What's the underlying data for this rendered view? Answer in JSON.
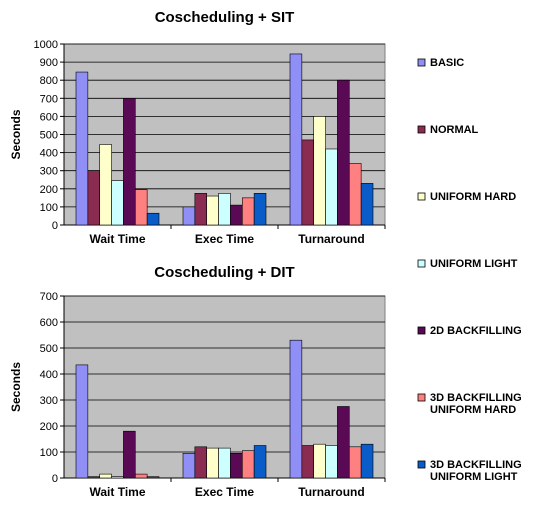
{
  "legend": {
    "position": "right",
    "entries": [
      {
        "lines": [
          "BASIC"
        ],
        "color": "#8f8ff5"
      },
      {
        "lines": [
          "NORMAL"
        ],
        "color": "#8a2b52"
      },
      {
        "lines": [
          "UNIFORM HARD"
        ],
        "color": "#ffffcc"
      },
      {
        "lines": [
          "UNIFORM LIGHT"
        ],
        "color": "#ccffff"
      },
      {
        "lines": [
          "2D BACKFILLING"
        ],
        "color": "#5a0a55"
      },
      {
        "lines": [
          "3D BACKFILLING",
          "UNIFORM HARD"
        ],
        "color": "#ff8080"
      },
      {
        "lines": [
          "3D BACKFILLING",
          "UNIFORM LIGHT"
        ],
        "color": "#0a5cc8"
      }
    ]
  },
  "chart_data": [
    {
      "type": "bar",
      "title": "Coscheduling + SIT",
      "xlabel": "",
      "ylabel": "Seconds",
      "ylim": [
        0,
        1000
      ],
      "yticks": [
        0,
        100,
        200,
        300,
        400,
        500,
        600,
        700,
        800,
        900,
        1000
      ],
      "grid": true,
      "plot_background": "#c0c0c0",
      "categories": [
        "Wait Time",
        "Exec Time",
        "Turnaround"
      ],
      "series": [
        {
          "name": "BASIC",
          "values": [
            845,
            100,
            945
          ]
        },
        {
          "name": "NORMAL",
          "values": [
            300,
            175,
            470
          ]
        },
        {
          "name": "UNIFORM HARD",
          "values": [
            445,
            160,
            600
          ]
        },
        {
          "name": "UNIFORM LIGHT",
          "values": [
            245,
            175,
            420
          ]
        },
        {
          "name": "2D BACKFILLING",
          "values": [
            700,
            110,
            800
          ]
        },
        {
          "name": "3D BACKFILLING UNIFORM HARD",
          "values": [
            195,
            150,
            340
          ]
        },
        {
          "name": "3D BACKFILLING UNIFORM LIGHT",
          "values": [
            65,
            175,
            230
          ]
        }
      ]
    },
    {
      "type": "bar",
      "title": "Coscheduling + DIT",
      "xlabel": "",
      "ylabel": "Seconds",
      "ylim": [
        0,
        700
      ],
      "yticks": [
        0,
        100,
        200,
        300,
        400,
        500,
        600,
        700
      ],
      "grid": true,
      "plot_background": "#c0c0c0",
      "categories": [
        "Wait Time",
        "Exec Time",
        "Turnaround"
      ],
      "series": [
        {
          "name": "BASIC",
          "values": [
            435,
            95,
            530
          ]
        },
        {
          "name": "NORMAL",
          "values": [
            5,
            120,
            125
          ]
        },
        {
          "name": "UNIFORM HARD",
          "values": [
            15,
            115,
            130
          ]
        },
        {
          "name": "UNIFORM LIGHT",
          "values": [
            5,
            115,
            125
          ]
        },
        {
          "name": "2D BACKFILLING",
          "values": [
            180,
            95,
            275
          ]
        },
        {
          "name": "3D BACKFILLING UNIFORM HARD",
          "values": [
            15,
            105,
            120
          ]
        },
        {
          "name": "3D BACKFILLING UNIFORM LIGHT",
          "values": [
            5,
            125,
            130
          ]
        }
      ]
    }
  ]
}
